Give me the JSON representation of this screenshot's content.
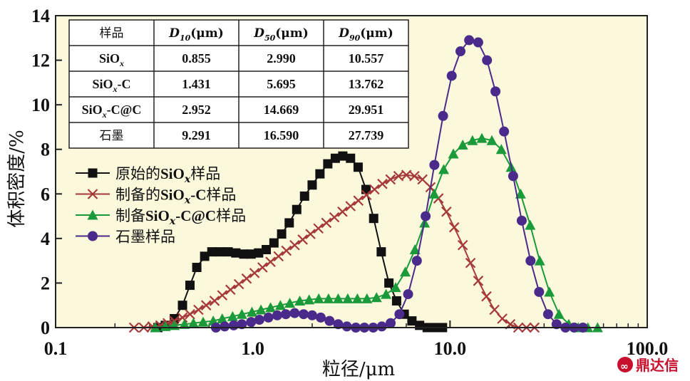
{
  "chart_data": {
    "type": "line",
    "x_scale": "log",
    "xlim": [
      0.1,
      100.0
    ],
    "ylim": [
      0,
      14
    ],
    "xlabel": "粒径/μm",
    "ylabel": "体积密度/%",
    "x_tick_labels": [
      "0.1",
      "1.0",
      "10.0",
      "100.0"
    ],
    "y_tick_labels": [
      "0",
      "2",
      "4",
      "6",
      "8",
      "10",
      "12",
      "14"
    ],
    "plot_background": "#fbf8dc",
    "series": [
      {
        "name": "原始的SiOx样品",
        "color": "#111111",
        "marker": "square",
        "x": [
          0.33,
          0.36,
          0.4,
          0.44,
          0.48,
          0.52,
          0.57,
          0.62,
          0.68,
          0.75,
          0.82,
          0.9,
          0.98,
          1.07,
          1.17,
          1.28,
          1.4,
          1.53,
          1.67,
          1.83,
          2.0,
          2.19,
          2.4,
          2.62,
          2.86,
          3.13,
          3.42,
          3.75,
          4.1,
          4.48,
          4.9,
          5.36,
          5.86,
          6.41,
          7.01,
          7.66,
          8.38,
          9.16
        ],
        "y": [
          0.0,
          0.1,
          0.4,
          1.0,
          1.9,
          2.7,
          3.2,
          3.4,
          3.4,
          3.4,
          3.35,
          3.3,
          3.3,
          3.35,
          3.5,
          3.8,
          4.2,
          4.7,
          5.3,
          5.9,
          6.4,
          6.9,
          7.35,
          7.6,
          7.7,
          7.6,
          7.2,
          6.2,
          4.9,
          3.4,
          2.0,
          1.2,
          0.6,
          0.3,
          0.1,
          0.0,
          0.0,
          0.0
        ],
        "x_visible_max": 9.2
      },
      {
        "name": "制备的SiOx-C样品",
        "color": "#a63a3a",
        "marker": "x",
        "x": [
          0.25,
          0.28,
          0.31,
          0.34,
          0.37,
          0.4,
          0.44,
          0.48,
          0.53,
          0.58,
          0.64,
          0.7,
          0.77,
          0.85,
          0.93,
          1.02,
          1.12,
          1.23,
          1.35,
          1.48,
          1.63,
          1.79,
          1.96,
          2.15,
          2.36,
          2.59,
          2.85,
          3.13,
          3.43,
          3.77,
          4.14,
          4.54,
          4.99,
          5.48,
          6.01,
          6.6,
          7.25,
          7.96,
          8.74,
          9.59,
          10.5,
          11.6,
          12.7,
          13.9,
          15.3,
          16.8,
          18.4,
          20.2,
          22.2,
          24.4,
          26.8
        ],
        "y": [
          0.0,
          0.0,
          0.05,
          0.1,
          0.2,
          0.3,
          0.45,
          0.6,
          0.8,
          1.0,
          1.2,
          1.45,
          1.7,
          1.95,
          2.2,
          2.45,
          2.7,
          2.95,
          3.2,
          3.45,
          3.7,
          3.95,
          4.2,
          4.45,
          4.7,
          4.95,
          5.2,
          5.45,
          5.7,
          5.95,
          6.2,
          6.45,
          6.65,
          6.8,
          6.85,
          6.8,
          6.65,
          6.3,
          5.8,
          5.2,
          4.5,
          3.7,
          2.9,
          2.1,
          1.4,
          0.8,
          0.4,
          0.15,
          0.0,
          0.0,
          0.0
        ]
      },
      {
        "name": "制备SiOx-C@C样品",
        "color": "#1a9a3a",
        "marker": "triangle",
        "x": [
          0.32,
          0.36,
          0.4,
          0.45,
          0.5,
          0.56,
          0.63,
          0.7,
          0.79,
          0.88,
          0.99,
          1.1,
          1.23,
          1.38,
          1.54,
          1.73,
          1.93,
          2.16,
          2.42,
          2.71,
          3.03,
          3.39,
          3.79,
          4.24,
          4.74,
          5.3,
          5.93,
          6.64,
          7.43,
          8.31,
          9.29,
          10.4,
          11.6,
          13.0,
          14.5,
          16.3,
          18.2,
          20.4,
          22.8,
          25.5,
          28.5,
          31.9,
          35.7,
          40.0,
          44.7,
          50.0,
          56.0
        ],
        "y": [
          0.0,
          0.05,
          0.1,
          0.15,
          0.2,
          0.25,
          0.3,
          0.4,
          0.5,
          0.6,
          0.7,
          0.8,
          0.9,
          1.0,
          1.1,
          1.2,
          1.25,
          1.3,
          1.3,
          1.3,
          1.3,
          1.3,
          1.3,
          1.35,
          1.5,
          1.8,
          2.5,
          3.5,
          4.7,
          6.0,
          7.1,
          7.8,
          8.2,
          8.4,
          8.5,
          8.4,
          8.0,
          7.2,
          6.0,
          4.6,
          3.0,
          1.6,
          0.6,
          0.15,
          0.0,
          0.0,
          0.0
        ]
      },
      {
        "name": "石墨样品",
        "color": "#4a2a8a",
        "marker": "circle",
        "x": [
          0.65,
          0.72,
          0.8,
          0.88,
          0.98,
          1.08,
          1.2,
          1.33,
          1.47,
          1.63,
          1.81,
          2.0,
          2.21,
          2.45,
          2.71,
          3.0,
          3.33,
          3.68,
          4.08,
          4.51,
          5.0,
          5.54,
          6.13,
          6.79,
          7.52,
          8.33,
          9.22,
          10.2,
          11.3,
          12.5,
          13.9,
          15.4,
          17.0,
          18.8,
          20.9,
          23.1,
          25.6,
          28.3,
          31.4,
          34.7,
          38.5,
          42.6,
          47.2
        ],
        "y": [
          0.0,
          0.05,
          0.1,
          0.15,
          0.25,
          0.35,
          0.45,
          0.55,
          0.6,
          0.65,
          0.6,
          0.55,
          0.45,
          0.3,
          0.15,
          0.05,
          0.0,
          0.0,
          0.0,
          0.05,
          0.2,
          0.6,
          1.5,
          3.0,
          5.0,
          7.3,
          9.5,
          11.3,
          12.4,
          12.9,
          12.8,
          12.0,
          10.6,
          8.8,
          6.8,
          4.8,
          3.0,
          1.6,
          0.6,
          0.15,
          0.0,
          0.0,
          0.0
        ]
      }
    ],
    "legend": {
      "placement": "left, below table",
      "entries": [
        {
          "text": "原始的",
          "bold": "SiO",
          "sub": "x",
          "tail": "样品"
        },
        {
          "text": "制备的",
          "bold": "SiO",
          "sub": "x",
          "bold2": "-C",
          "tail": "样品"
        },
        {
          "text": "制备",
          "bold": "SiO",
          "sub": "x",
          "bold2": "-C@C",
          "tail": "样品"
        },
        {
          "text": "石墨样品"
        }
      ]
    },
    "inset_table": {
      "headers": [
        "样品",
        "D10(μm)",
        "D50(μm)",
        "D90(μm)"
      ],
      "header_parts": [
        {
          "main": "样品"
        },
        {
          "main": "D",
          "sub": "10",
          "tail": "(μm)"
        },
        {
          "main": "D",
          "sub": "50",
          "tail": "(μm)"
        },
        {
          "main": "D",
          "sub": "90",
          "tail": "(μm)"
        }
      ],
      "rows": [
        {
          "sample": "SiOx",
          "sample_main": "SiO",
          "sample_sub": "x",
          "sample_tail": "",
          "d10": "0.855",
          "d50": "2.990",
          "d90": "10.557"
        },
        {
          "sample": "SiOx-C",
          "sample_main": "SiO",
          "sample_sub": "x",
          "sample_tail": "-C",
          "d10": "1.431",
          "d50": "5.695",
          "d90": "13.762"
        },
        {
          "sample": "SiOx-C@C",
          "sample_main": "SiO",
          "sample_sub": "x",
          "sample_tail": "-C@C",
          "d10": "2.952",
          "d50": "14.669",
          "d90": "29.951"
        },
        {
          "sample": "石墨",
          "sample_main": "石墨",
          "sample_sub": "",
          "sample_tail": "",
          "d10": "9.291",
          "d50": "16.590",
          "d90": "27.739"
        }
      ]
    }
  },
  "watermark": {
    "text": "鼎达信",
    "color": "#c8102e"
  }
}
